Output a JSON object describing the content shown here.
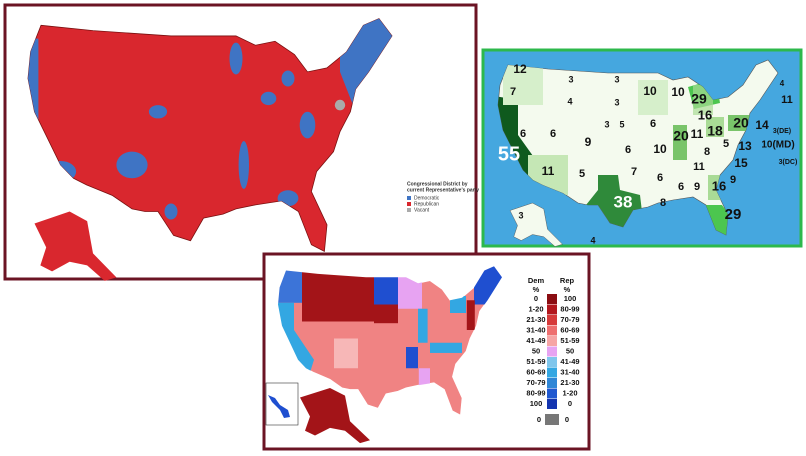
{
  "district_map": {
    "legend": {
      "title": [
        "Congressional District by",
        "current Representative's party"
      ],
      "items": [
        "Democratic",
        "Republican",
        "Vacant"
      ]
    }
  },
  "electoral_map": {
    "labels": [
      "12",
      "7",
      "3",
      "3",
      "4",
      "3",
      "10",
      "10",
      "16",
      "29",
      "3",
      "5",
      "6",
      "6",
      "6",
      "9",
      "6",
      "10",
      "20",
      "11",
      "18",
      "20",
      "4",
      "11",
      "14",
      "3(DE)",
      "10(MD)",
      "3(DC)",
      "13",
      "5",
      "8",
      "11",
      "15",
      "9",
      "16",
      "9",
      "6",
      "6",
      "8",
      "7",
      "38",
      "5",
      "11",
      "55",
      "29",
      "3",
      "4"
    ]
  },
  "margin_map": {
    "legend": {
      "dem_header": [
        "Dem",
        "%"
      ],
      "rep_header": [
        "Rep",
        "%"
      ],
      "dem": [
        "0",
        "1-20",
        "21-30",
        "31-40",
        "41-49",
        "50",
        "51-59",
        "60-69",
        "70-79",
        "80-99",
        "100"
      ],
      "rep": [
        "100",
        "80-99",
        "70-79",
        "60-69",
        "51-59",
        "50",
        "41-49",
        "31-40",
        "21-30",
        "1-20",
        "0"
      ],
      "bottom": [
        "0",
        "0"
      ]
    }
  }
}
